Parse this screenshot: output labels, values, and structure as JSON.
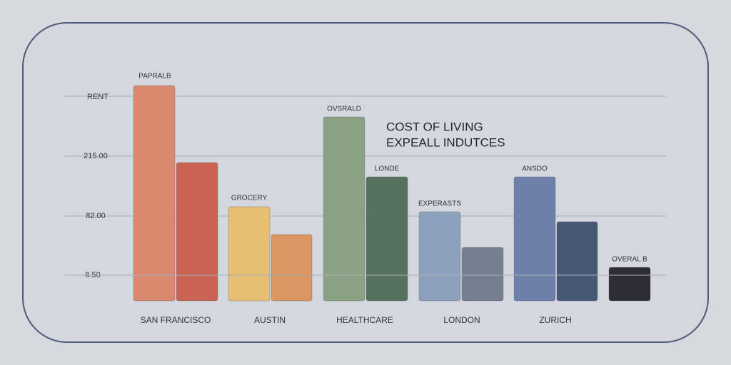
{
  "title": {
    "lines": [
      "COST OF LIVING",
      "EXPEALL INDUTCES"
    ]
  },
  "axis": {
    "labels": [
      "RENT",
      "215.00",
      "82.00",
      "8.50"
    ]
  },
  "groups": [
    {
      "label": "SAN FRANCISCO",
      "bar_label": "PAPRALB"
    },
    {
      "label": "AUSTIN",
      "bar_label": "GROCERY"
    },
    {
      "label": "HEALTHCARE",
      "bar_label": "OVSRALD",
      "second_bar_label": "LONDE"
    },
    {
      "label": "LONDON",
      "bar_label": "EXPERASTS"
    },
    {
      "label": "ZURICH",
      "bar_label": "ANSDO"
    },
    {
      "bar_label": "OVERAL B"
    }
  ]
}
